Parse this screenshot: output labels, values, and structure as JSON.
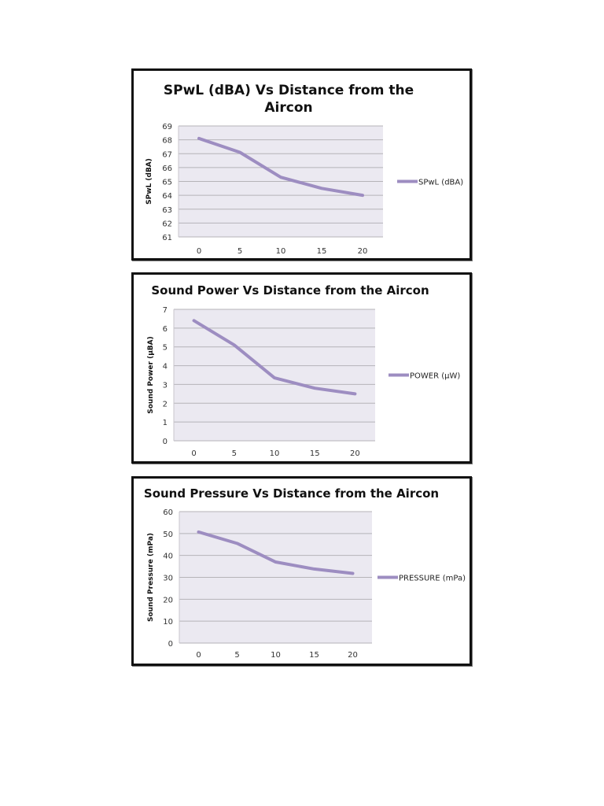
{
  "page": {
    "background": "#ffffff"
  },
  "style": {
    "line_color": "#9d8dc1",
    "plot_bg": "#ebe9f1",
    "grid_color": "#b5b3b8",
    "border_color": "#111111"
  },
  "chart_data": [
    {
      "type": "line",
      "title": "SPwL (dBA) Vs Distance from the Aircon",
      "title_lines": [
        "SPwL (dBA) Vs Distance from the",
        "Aircon"
      ],
      "xlabel": "",
      "ylabel": "SPwL (dBA)",
      "categories": [
        "0",
        "5",
        "10",
        "15",
        "20"
      ],
      "series": [
        {
          "name": "SPwL (dBA)",
          "values": [
            68.1,
            67.1,
            65.3,
            64.5,
            64.0
          ]
        }
      ],
      "ylim": [
        61,
        69
      ],
      "yticks": [
        61,
        62,
        63,
        64,
        65,
        66,
        67,
        68,
        69
      ],
      "grid": true,
      "legend_position": "right"
    },
    {
      "type": "line",
      "title": "Sound Power Vs Distance from the Aircon",
      "title_lines": [
        "Sound Power Vs Distance from the Aircon"
      ],
      "xlabel": "",
      "ylabel": "Sound Power (µBA)",
      "categories": [
        "0",
        "5",
        "10",
        "15",
        "20"
      ],
      "series": [
        {
          "name": "POWER (µW)",
          "values": [
            6.4,
            5.1,
            3.35,
            2.8,
            2.5
          ]
        }
      ],
      "ylim": [
        0,
        7
      ],
      "yticks": [
        0,
        1,
        2,
        3,
        4,
        5,
        6,
        7
      ],
      "grid": true,
      "legend_position": "right"
    },
    {
      "type": "line",
      "title": "Sound Pressure Vs Distance from the Aircon",
      "title_lines": [
        "Sound Pressure Vs Distance from the Aircon"
      ],
      "xlabel": "",
      "ylabel": "Sound Pressure (mPa)",
      "categories": [
        "0",
        "5",
        "10",
        "15",
        "20"
      ],
      "series": [
        {
          "name": "PRESSURE (mPa)",
          "values": [
            50.7,
            45.5,
            37.0,
            33.8,
            31.8
          ]
        }
      ],
      "ylim": [
        0,
        60
      ],
      "yticks": [
        0,
        10,
        20,
        30,
        40,
        50,
        60
      ],
      "grid": true,
      "legend_position": "right"
    }
  ]
}
